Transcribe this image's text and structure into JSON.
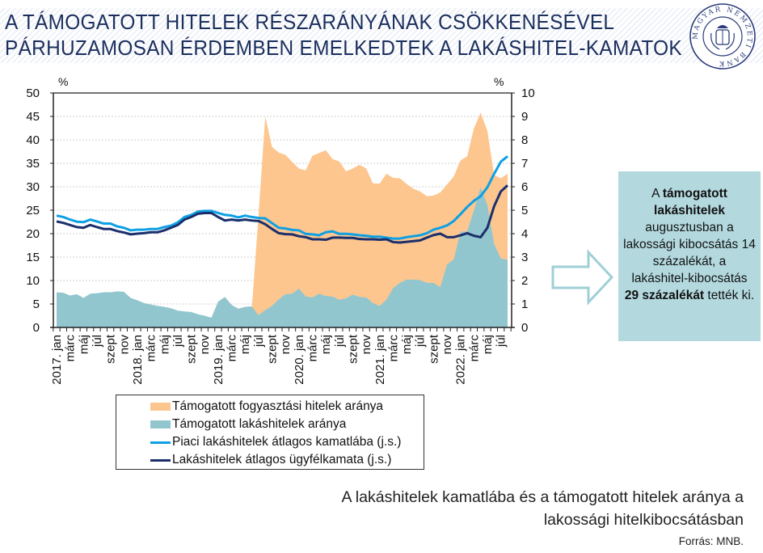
{
  "header": {
    "title_line1": "A TÁMOGATOTT HITELEK RÉSZARÁNYÁNAK CSÖKKENÉSÉVEL",
    "title_line2": "PÁRHUZAMOSAN ÉRDEMBEN EMELKEDTEK A LAKÁSHITEL-KAMATOK",
    "logo_text": "MAGYAR NEMZETI BANK"
  },
  "chart_data": {
    "type": "area+line",
    "title": "A lakáshitelek kamatlába és a támogatott hitelek aránya a lakossági hitelkibocsátásban",
    "ylabel_left": "%",
    "ylabel_right": "%",
    "ylim_left": [
      0,
      50
    ],
    "ylim_right": [
      0,
      10
    ],
    "yticks_left": [
      "0",
      "5",
      "10",
      "15",
      "20",
      "25",
      "30",
      "35",
      "40",
      "45",
      "50"
    ],
    "yticks_right": [
      "0",
      "1",
      "2",
      "3",
      "4",
      "5",
      "6",
      "7",
      "8",
      "9",
      "10"
    ],
    "x_start": "2017. jan",
    "x_end": "2022. aug",
    "n_months": 68,
    "xtick_labels": [
      "2017. jan",
      "márc",
      "máj",
      "júl",
      "szept",
      "nov",
      "2018. jan",
      "márc",
      "máj",
      "júl",
      "szept",
      "nov",
      "2019. jan",
      "márc",
      "máj",
      "júl",
      "szept",
      "nov",
      "2020. jan",
      "márc",
      "máj",
      "júl",
      "szept",
      "nov",
      "2021. jan",
      "márc",
      "máj",
      "júl",
      "szept",
      "nov",
      "2022. jan",
      "márc",
      "máj",
      "júl"
    ],
    "grid": true,
    "legend_position": "bottom",
    "series": [
      {
        "name": "Támogatott fogyasztási hitelek aránya",
        "kind": "area",
        "axis": "left",
        "color": "#fdc68f",
        "values": [
          null,
          null,
          null,
          null,
          null,
          null,
          null,
          null,
          null,
          null,
          null,
          null,
          null,
          null,
          null,
          null,
          null,
          null,
          null,
          null,
          null,
          null,
          null,
          null,
          null,
          null,
          null,
          null,
          null,
          4,
          24,
          45,
          38.5,
          37.3,
          36.8,
          35.3,
          33.9,
          33.5,
          36.6,
          37.2,
          37.8,
          35.9,
          35.4,
          33.3,
          33.9,
          34.7,
          33.9,
          30.7,
          30.7,
          32.8,
          31.9,
          31.8,
          30.6,
          29.6,
          29.0,
          28.0,
          28.1,
          28.8,
          30.5,
          32.2,
          35.6,
          36.5,
          42.5,
          45.8,
          41.9,
          32.5,
          31.8,
          32.8
        ]
      },
      {
        "name": "Támogatott lakáshitelek aránya",
        "kind": "area",
        "axis": "left",
        "color": "#92c6cf",
        "values": [
          7.5,
          7.4,
          6.8,
          7.1,
          6.3,
          7.2,
          7.3,
          7.5,
          7.5,
          7.7,
          7.6,
          6.3,
          5.8,
          5.2,
          4.9,
          4.6,
          4.4,
          4.1,
          3.6,
          3.4,
          3.3,
          2.8,
          2.5,
          2.1,
          5.5,
          6.5,
          4.8,
          4.0,
          4.4,
          4.5,
          2.6,
          3.7,
          4.6,
          6.0,
          7.1,
          7.2,
          8.3,
          6.6,
          6.4,
          7.2,
          6.7,
          6.6,
          5.9,
          6.2,
          7.0,
          6.5,
          6.4,
          5.2,
          4.6,
          5.9,
          8.4,
          9.5,
          10.2,
          10.2,
          10.1,
          9.5,
          9.5,
          8.6,
          13.4,
          14.5,
          20.4,
          20.5,
          25.0,
          29.9,
          26.1,
          17.8,
          14.7,
          14.4
        ]
      },
      {
        "name": "Piaci lakáshitelek átlagos kamatlába (j.s.)",
        "kind": "line",
        "axis": "right",
        "color": "#0ea0e3",
        "values": [
          4.77,
          4.71,
          4.6,
          4.51,
          4.49,
          4.6,
          4.52,
          4.43,
          4.43,
          4.31,
          4.25,
          4.14,
          4.17,
          4.17,
          4.2,
          4.2,
          4.28,
          4.34,
          4.48,
          4.71,
          4.8,
          4.94,
          4.97,
          4.97,
          4.88,
          4.8,
          4.77,
          4.69,
          4.77,
          4.71,
          4.67,
          4.65,
          4.45,
          4.25,
          4.22,
          4.16,
          4.14,
          3.99,
          3.97,
          3.93,
          4.06,
          4.1,
          3.99,
          3.99,
          3.97,
          3.93,
          3.91,
          3.87,
          3.87,
          3.83,
          3.79,
          3.79,
          3.85,
          3.89,
          3.93,
          4.02,
          4.17,
          4.25,
          4.35,
          4.54,
          4.83,
          5.14,
          5.4,
          5.6,
          5.98,
          6.55,
          7.07,
          7.3
        ]
      },
      {
        "name": "Lakáshitelek átlagos ügyfélkamata (j.s.)",
        "kind": "line",
        "axis": "right",
        "color": "#1b2f6b",
        "values": [
          4.52,
          4.46,
          4.37,
          4.28,
          4.25,
          4.37,
          4.28,
          4.2,
          4.2,
          4.11,
          4.05,
          3.97,
          4.0,
          4.02,
          4.06,
          4.06,
          4.14,
          4.25,
          4.37,
          4.6,
          4.71,
          4.85,
          4.88,
          4.88,
          4.71,
          4.56,
          4.6,
          4.56,
          4.6,
          4.56,
          4.54,
          4.4,
          4.2,
          4.02,
          3.98,
          3.97,
          3.89,
          3.85,
          3.76,
          3.76,
          3.74,
          3.83,
          3.83,
          3.82,
          3.82,
          3.77,
          3.76,
          3.76,
          3.74,
          3.76,
          3.64,
          3.62,
          3.65,
          3.68,
          3.71,
          3.83,
          3.94,
          4.0,
          3.85,
          3.85,
          3.93,
          4.02,
          3.91,
          3.85,
          4.25,
          5.17,
          5.8,
          6.06
        ]
      }
    ]
  },
  "note": {
    "part1": "A ",
    "bold1": "támogatott lakáshitelek",
    "part2": " augusztusban a lakossági kibocsátás 14 százalékát, a lakáshitel-kibocsátás ",
    "bold2": "29 százalékát",
    "part3": " tették ki."
  },
  "caption": {
    "line1": "A lakáshitelek kamatlába és a támogatott hitelek aránya a",
    "line2": "lakossági hitelkibocsátásban",
    "source": "Forrás: MNB."
  }
}
